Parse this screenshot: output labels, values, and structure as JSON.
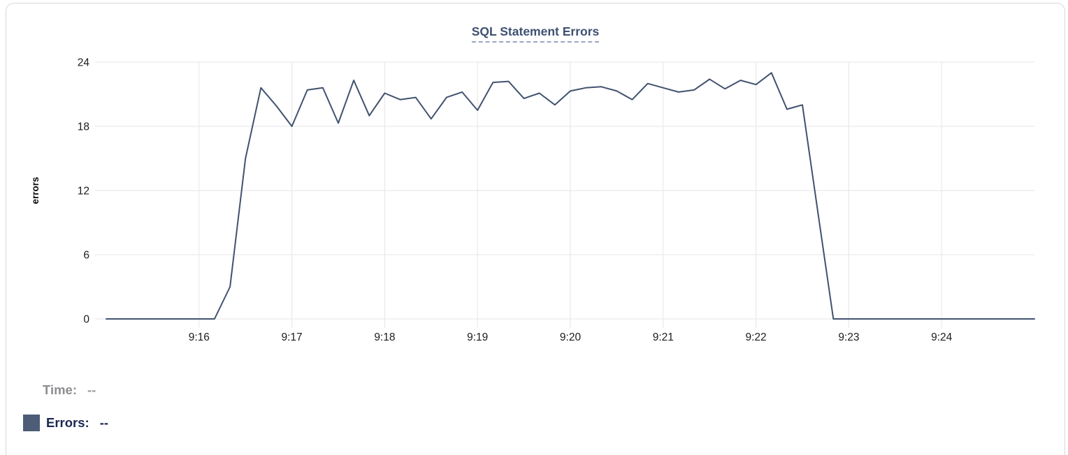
{
  "chart_data": {
    "type": "line",
    "title": "SQL Statement Errors",
    "ylabel": "errors",
    "series": [
      {
        "name": "Errors",
        "color": "#41526f",
        "x_start": "9:15:00",
        "x_end": "9:25:00",
        "x_interval_seconds": 10,
        "values": [
          0,
          0,
          0,
          0,
          0,
          0,
          0,
          0,
          3,
          15,
          21.6,
          19.9,
          18,
          21.4,
          21.6,
          18.3,
          22.3,
          19,
          21.1,
          20.5,
          20.7,
          18.7,
          20.7,
          21.2,
          19.5,
          22.1,
          22.2,
          20.6,
          21.1,
          20,
          21.3,
          21.6,
          21.7,
          21.3,
          20.5,
          22,
          21.6,
          21.2,
          21.4,
          22.4,
          21.5,
          22.3,
          21.9,
          23,
          19.6,
          20,
          10,
          0,
          0,
          0,
          0,
          0,
          0,
          0,
          0,
          0,
          0,
          0,
          0,
          0,
          0
        ]
      }
    ],
    "xlabel": "",
    "x_tick_labels": [
      "9:16",
      "9:17",
      "9:18",
      "9:19",
      "9:20",
      "9:21",
      "9:22",
      "9:23",
      "9:24"
    ],
    "x_tick_offsets_seconds": [
      60,
      120,
      180,
      240,
      300,
      360,
      420,
      480,
      540
    ],
    "ylim": [
      0,
      24
    ],
    "y_ticks": [
      0,
      6,
      12,
      18,
      24
    ],
    "grid": true,
    "legend_position": "bottom-left"
  },
  "legend": {
    "time_label": "Time:",
    "time_value": "--",
    "errors_label": "Errors:",
    "errors_value": "--",
    "errors_swatch_color": "#4d5c77"
  }
}
